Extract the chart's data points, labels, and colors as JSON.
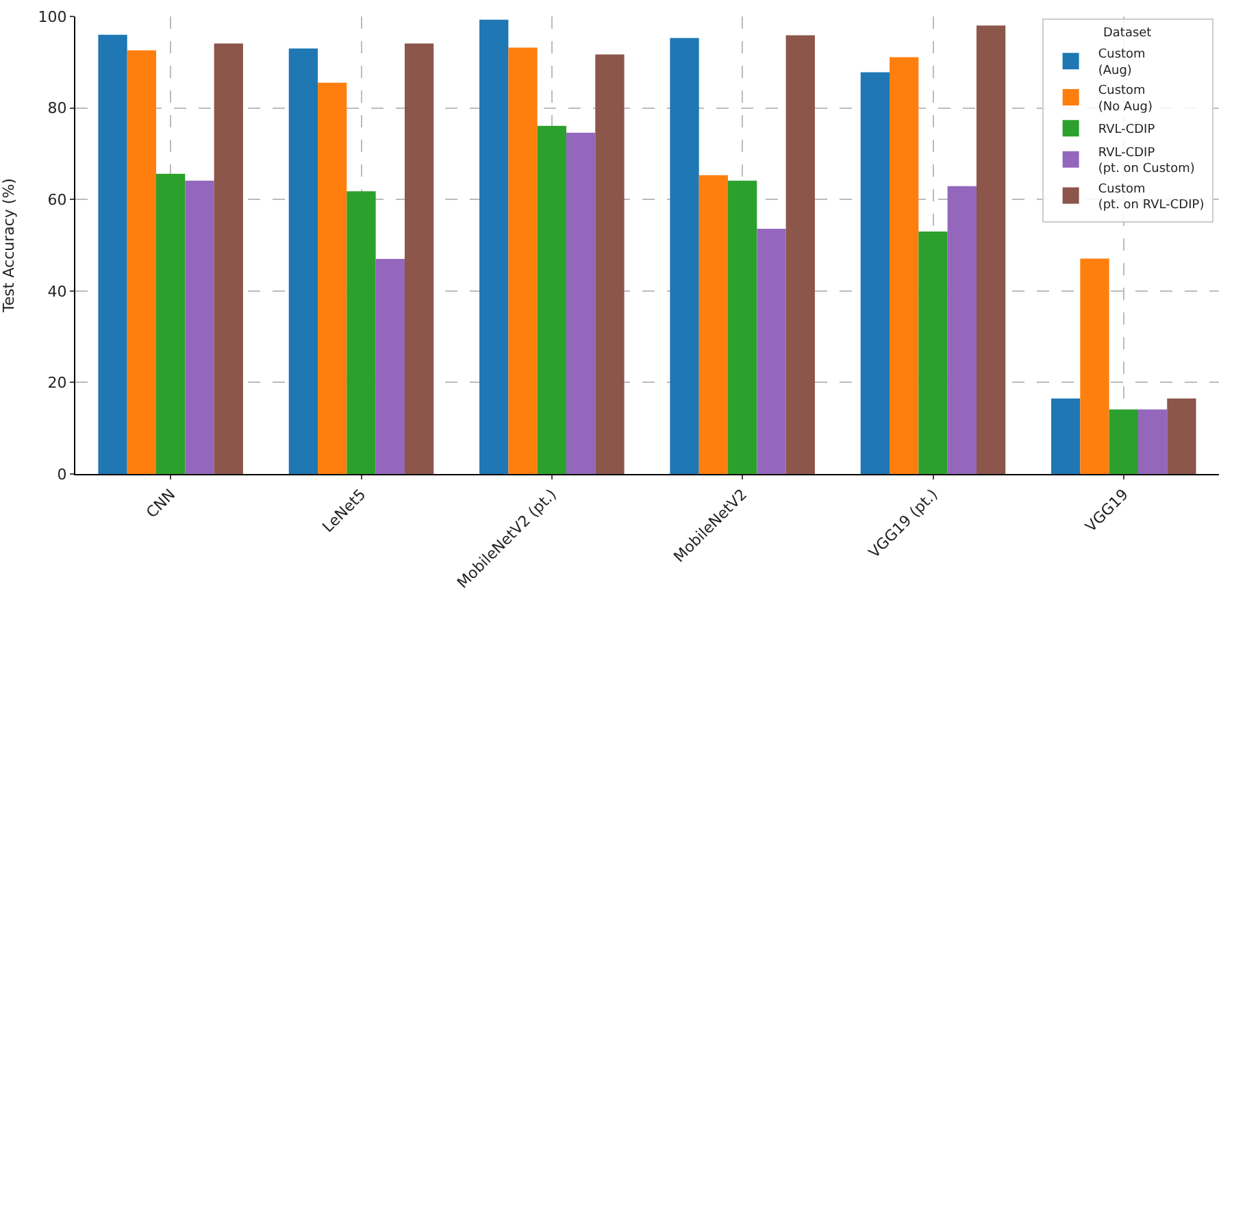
{
  "chart_data": {
    "type": "bar",
    "ylabel": "Test Accuracy (%)",
    "legend_title": "Dataset",
    "categories": [
      "CNN",
      "LeNet5",
      "MobileNetV2 (pt.)",
      "MobileNetV2",
      "VGG19 (pt.)",
      "VGG19"
    ],
    "series": [
      {
        "name": "Custom\n(Aug)",
        "color": "#1f77b4",
        "values": [
          96.0,
          93.0,
          99.3,
          95.3,
          87.8,
          16.5
        ]
      },
      {
        "name": "Custom\n(No Aug)",
        "color": "#ff7f0e",
        "values": [
          92.6,
          85.5,
          93.2,
          65.3,
          91.1,
          47.1
        ]
      },
      {
        "name": "RVL-CDIP",
        "color": "#2ca02c",
        "values": [
          65.6,
          61.8,
          76.1,
          64.1,
          53.0,
          14.1
        ]
      },
      {
        "name": "RVL-CDIP\n(pt. on Custom)",
        "color": "#9467bd",
        "values": [
          64.1,
          47.0,
          74.6,
          53.6,
          62.9,
          14.1
        ]
      },
      {
        "name": "Custom\n(pt. on RVL-CDIP)",
        "color": "#8c564b",
        "values": [
          94.1,
          94.1,
          91.7,
          95.9,
          98.0,
          16.5
        ]
      }
    ],
    "ylim": [
      0,
      100
    ],
    "yticks": [
      0,
      20,
      40,
      60,
      80,
      100
    ],
    "grid": true,
    "legend": "top right"
  }
}
